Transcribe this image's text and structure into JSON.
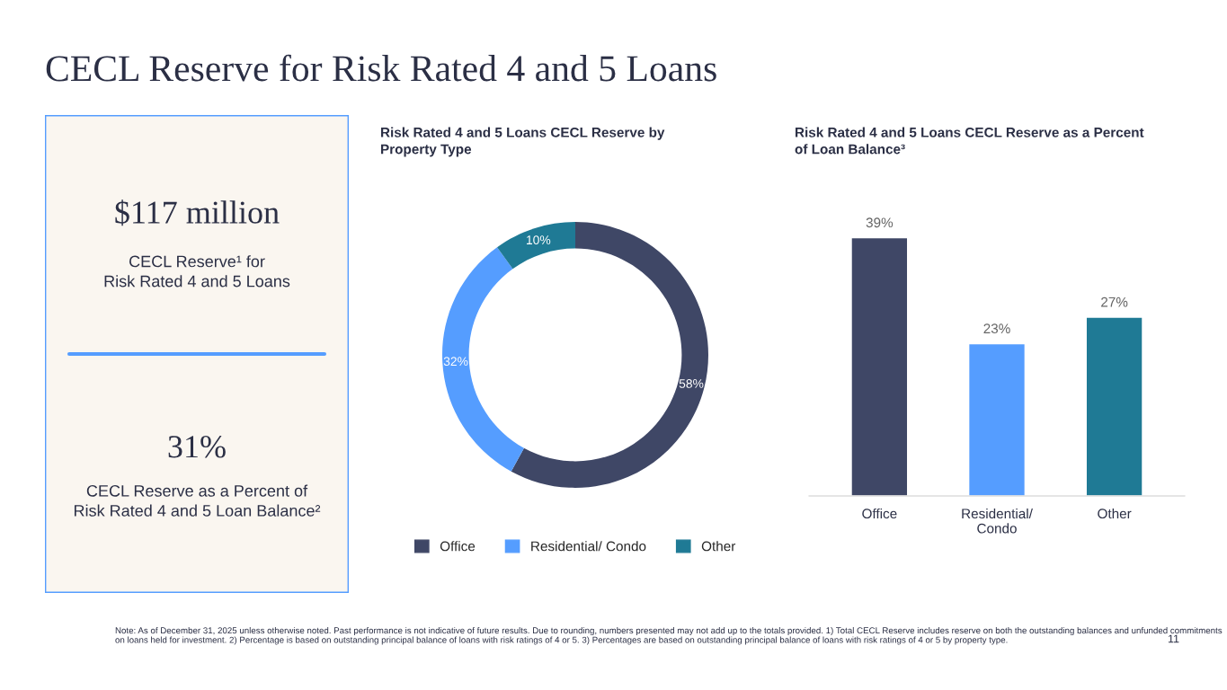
{
  "chart_data": [
    {
      "type": "other",
      "title": "CECL Reserve for Risk Rated 4 and 5 Loans",
      "annotations": [
        "$117 million",
        "CECL Reserve¹ for\nRisk Rated 4 and 5 Loans",
        "31%",
        "CECL Reserve as a Percent of\nRisk Rated 4 and 5 Loan Balance²",
        "Note: As of December 31, 2025 unless otherwise noted. Past performance is not indicative of future results. Due to rounding, numbers presented may not add up to the totals provided. 1) Total CECL Reserve includes reserve on both the outstanding balances and unfunded commitments on loans held for investment. 2) Percentage is based on outstanding principal balance of loans with risk ratings of 4 or 5. 3) Percentages are based on outstanding principal balance of loans with risk ratings of 4 or 5 by property type.",
        "11"
      ]
    },
    {
      "type": "donut",
      "title": "Risk Rated 4 and 5 Loans CECL Reserve by\nProperty Type",
      "categories": [
        "Office",
        "Residential/ Condo",
        "Other"
      ],
      "values": [
        58,
        32,
        10
      ],
      "colors": [
        "#3f4766",
        "#559dff",
        "#1f7a95"
      ],
      "value_labels": [
        "58%",
        "32%",
        "10%"
      ],
      "legend": "bottom"
    },
    {
      "type": "bar",
      "title": "Risk Rated 4 and 5 Loans CECL Reserve as a Percent\nof Loan Balance³",
      "categories": [
        "Office",
        "Residential/ Condo",
        "Other"
      ],
      "values": [
        39,
        23,
        27
      ],
      "colors": [
        "#3f4766",
        "#559dff",
        "#1f7a95"
      ],
      "value_labels": [
        "39%",
        "23%",
        "27%"
      ]
    }
  ]
}
